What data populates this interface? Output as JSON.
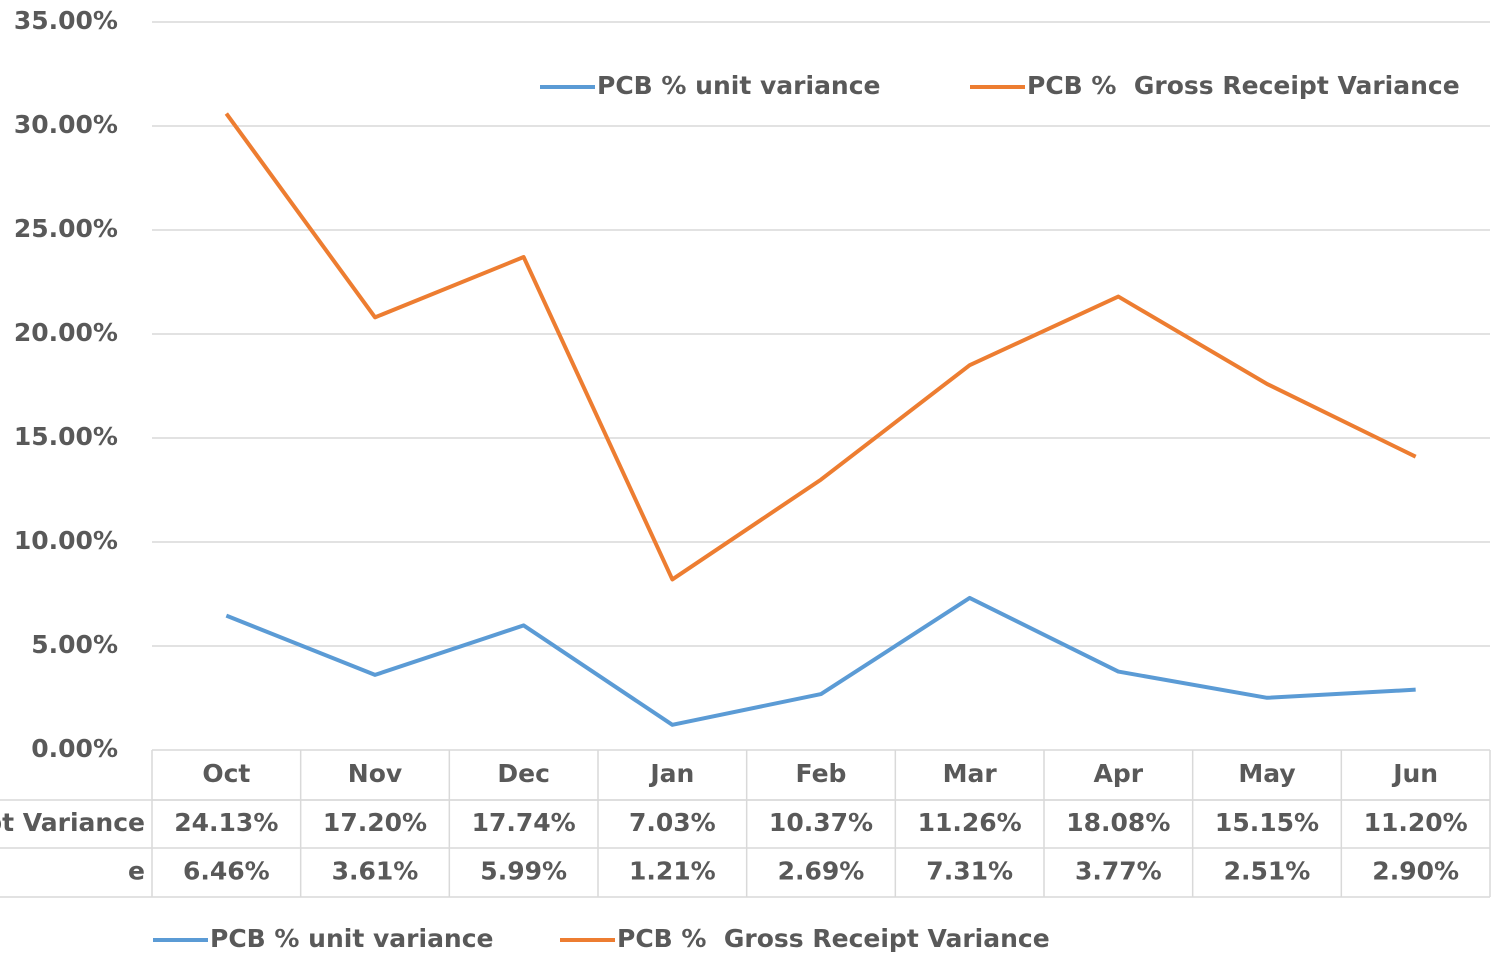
{
  "chart_data": {
    "type": "line",
    "categories": [
      "Oct",
      "Nov",
      "Dec",
      "Jan",
      "Feb",
      "Mar",
      "Apr",
      "May",
      "Jun"
    ],
    "series": [
      {
        "name": "PCB % unit variance",
        "color": "#5b9bd5",
        "values": [
          6.46,
          3.61,
          5.99,
          1.21,
          2.69,
          7.31,
          3.77,
          2.51,
          2.9
        ]
      },
      {
        "name": "PCB %  Gross Receipt Variance",
        "color": "#ed7d31",
        "values": [
          30.6,
          20.8,
          23.7,
          8.2,
          13.0,
          18.5,
          21.8,
          17.6,
          14.1
        ]
      }
    ],
    "ylim": [
      0,
      35
    ],
    "yticks": [
      {
        "value": 0,
        "label": "0.00%"
      },
      {
        "value": 5,
        "label": "5.00%"
      },
      {
        "value": 10,
        "label": "10.00%"
      },
      {
        "value": 15,
        "label": "15.00%"
      },
      {
        "value": 20,
        "label": "20.00%"
      },
      {
        "value": 25,
        "label": "25.00%"
      },
      {
        "value": 30,
        "label": "30.00%"
      },
      {
        "value": 35,
        "label": "35.00%"
      }
    ],
    "grid": true,
    "table": {
      "rows": [
        {
          "label": "pt Variance",
          "cells": [
            "24.13%",
            "17.20%",
            "17.74%",
            "7.03%",
            "10.37%",
            "11.26%",
            "18.08%",
            "15.15%",
            "11.20%"
          ]
        },
        {
          "label": "e",
          "cells": [
            "6.46%",
            "3.61%",
            "5.99%",
            "1.21%",
            "2.69%",
            "7.31%",
            "3.77%",
            "2.51%",
            "2.90%"
          ]
        }
      ]
    }
  }
}
